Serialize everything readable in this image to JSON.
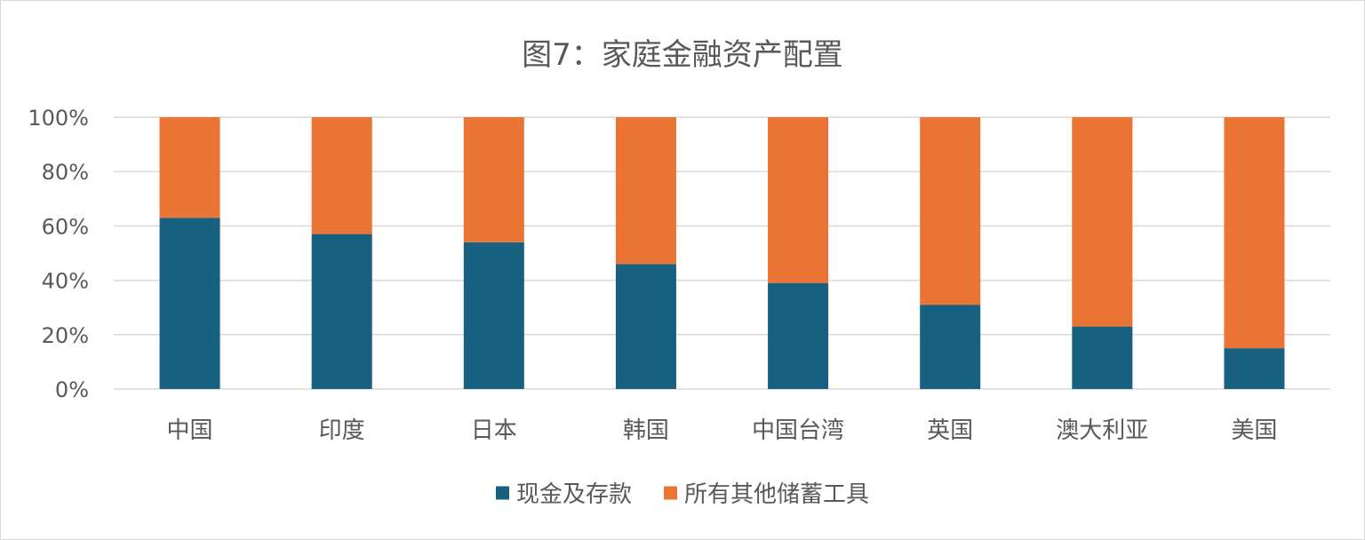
{
  "chart_data": {
    "type": "bar",
    "stacked": true,
    "percent_stacked": true,
    "title": "图7：家庭金融资产配置",
    "categories": [
      "中国",
      "印度",
      "日本",
      "韩国",
      "中国台湾",
      "英国",
      "澳大利亚",
      "美国"
    ],
    "series": [
      {
        "name": "现金及存款",
        "color": "#17607f",
        "values": [
          63,
          57,
          54,
          46,
          39,
          31,
          23,
          15
        ]
      },
      {
        "name": "所有其他储蓄工具",
        "color": "#ea7434",
        "values": [
          37,
          43,
          46,
          54,
          61,
          69,
          77,
          85
        ]
      }
    ],
    "ylim": [
      0,
      100
    ],
    "yticks": [
      0,
      20,
      40,
      60,
      80,
      100
    ],
    "ytick_labels": [
      "0%",
      "20%",
      "40%",
      "60%",
      "80%",
      "100%"
    ],
    "grid": true,
    "legend_position": "bottom"
  }
}
